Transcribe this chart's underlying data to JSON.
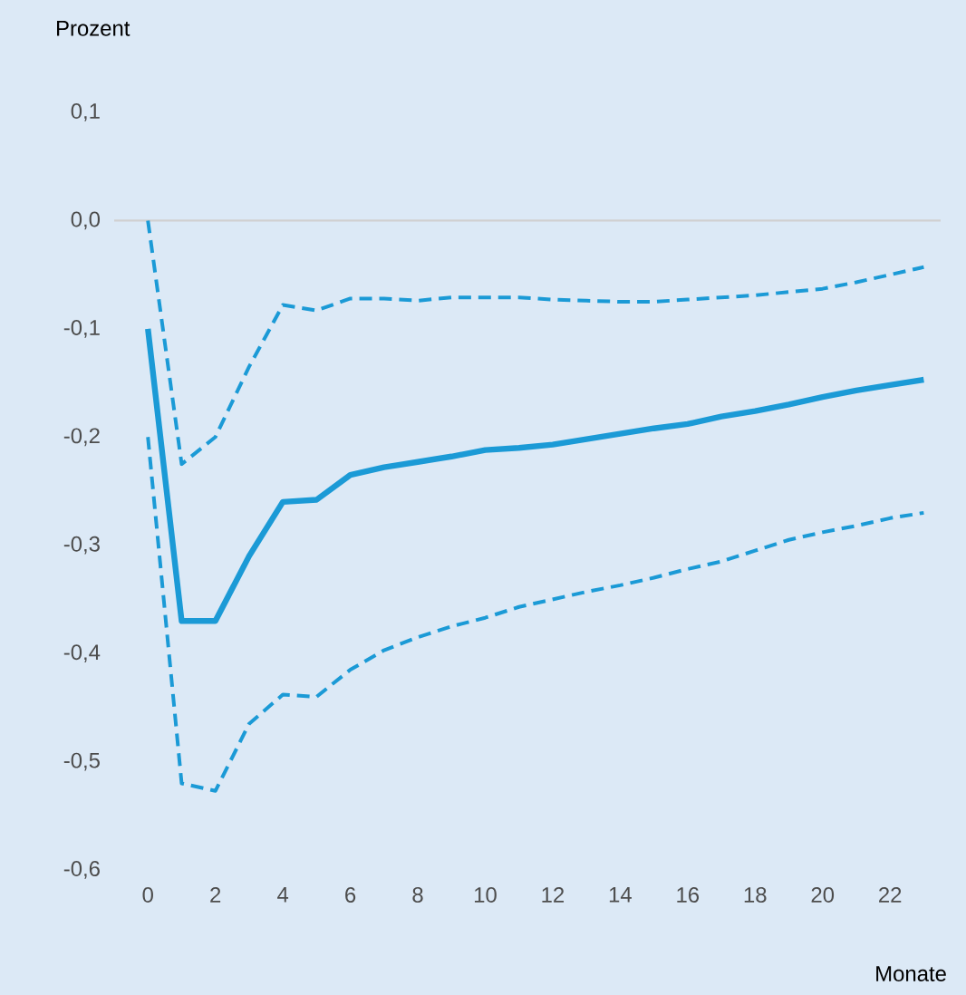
{
  "chart_data": {
    "type": "line",
    "xlabel": "Monate",
    "ylabel": "Prozent",
    "x": [
      0,
      1,
      2,
      3,
      4,
      5,
      6,
      7,
      8,
      9,
      10,
      11,
      12,
      13,
      14,
      15,
      16,
      17,
      18,
      19,
      20,
      21,
      22,
      23
    ],
    "series": [
      {
        "color": "#1b9ad6",
        "line_style": "solid",
        "values": [
          -0.1,
          -0.37,
          -0.37,
          -0.31,
          -0.26,
          -0.258,
          -0.235,
          -0.228,
          -0.223,
          -0.218,
          -0.212,
          -0.21,
          -0.207,
          -0.202,
          -0.197,
          -0.192,
          -0.188,
          -0.181,
          -0.176,
          -0.17,
          -0.163,
          -0.157,
          -0.152,
          -0.147
        ]
      },
      {
        "color": "#1b9ad6",
        "line_style": "dashed",
        "values": [
          0.0,
          -0.225,
          -0.2,
          -0.135,
          -0.078,
          -0.083,
          -0.072,
          -0.072,
          -0.074,
          -0.071,
          -0.071,
          -0.071,
          -0.073,
          -0.074,
          -0.075,
          -0.075,
          -0.073,
          -0.071,
          -0.069,
          -0.066,
          -0.063,
          -0.057,
          -0.05,
          -0.043
        ]
      },
      {
        "color": "#1b9ad6",
        "line_style": "dashed",
        "values": [
          -0.2,
          -0.52,
          -0.527,
          -0.465,
          -0.438,
          -0.44,
          -0.415,
          -0.397,
          -0.385,
          -0.375,
          -0.367,
          -0.357,
          -0.35,
          -0.343,
          -0.337,
          -0.33,
          -0.322,
          -0.315,
          -0.305,
          -0.295,
          -0.288,
          -0.282,
          -0.275,
          -0.27
        ]
      }
    ],
    "xlim": [
      -1,
      23.5
    ],
    "ylim": [
      -0.6,
      0.1
    ],
    "xticks": [
      0,
      2,
      4,
      6,
      8,
      10,
      12,
      14,
      16,
      18,
      20,
      22
    ],
    "yticks": [
      {
        "value": 0.1,
        "label": "0,1"
      },
      {
        "value": 0.0,
        "label": "0,0"
      },
      {
        "value": -0.1,
        "label": "-0,1"
      },
      {
        "value": -0.2,
        "label": "-0,2"
      },
      {
        "value": -0.3,
        "label": "-0,3"
      },
      {
        "value": -0.4,
        "label": "-0,4"
      },
      {
        "value": -0.5,
        "label": "-0,5"
      },
      {
        "value": -0.6,
        "label": "-0,6"
      }
    ],
    "ref_lines": [
      {
        "axis": "y",
        "value": 0.0,
        "color": "#d0d0d0"
      }
    ],
    "grid": false,
    "marker": "none"
  }
}
